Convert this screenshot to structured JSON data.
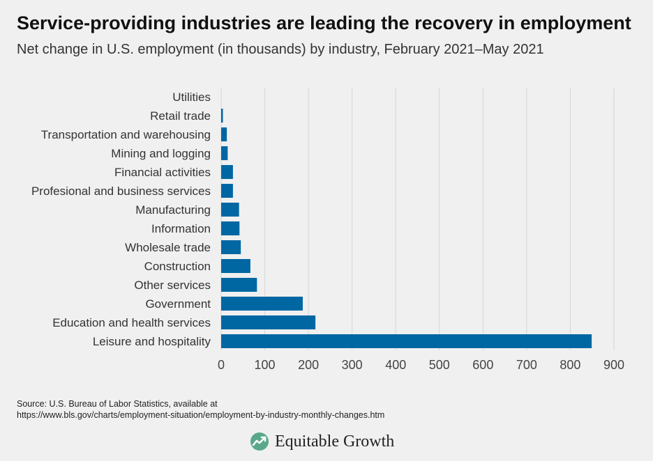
{
  "title": "Service-providing industries are leading the recovery in employment",
  "subtitle": "Net change in U.S. employment (in thousands) by industry, February 2021–May 2021",
  "source_line1": "Source: U.S. Bureau of Labor Statistics, available at",
  "source_line2": "https://www.bls.gov/charts/employment-situation/employment-by-industry-monthly-changes.htm",
  "brand": {
    "name": "Equitable Growth",
    "icon": "equitable-growth-logo-icon"
  },
  "colors": {
    "bar": "#0067a3",
    "background": "#f0f0f0",
    "grid": "#d6d6d6"
  },
  "chart_data": {
    "type": "bar",
    "orientation": "horizontal",
    "title": "Service-providing industries are leading the recovery in employment",
    "subtitle": "Net change in U.S. employment (in thousands) by industry, February 2021–May 2021",
    "categories": [
      "Utilities",
      "Retail trade",
      "Transportation and warehousing",
      "Mining and logging",
      "Financial activities",
      "Profesional and business services",
      "Manufacturing",
      "Information",
      "Wholesale trade",
      "Construction",
      "Other services",
      "Government",
      "Education and health services",
      "Leisure and hospitality"
    ],
    "values": [
      0,
      4,
      13,
      15,
      27,
      27,
      41,
      42,
      45,
      67,
      82,
      187,
      216,
      849
    ],
    "xlim": [
      0,
      900
    ],
    "xticks": [
      "0",
      "100",
      "200",
      "300",
      "400",
      "500",
      "600",
      "700",
      "800",
      "900"
    ],
    "grid": true,
    "legend": "none"
  }
}
